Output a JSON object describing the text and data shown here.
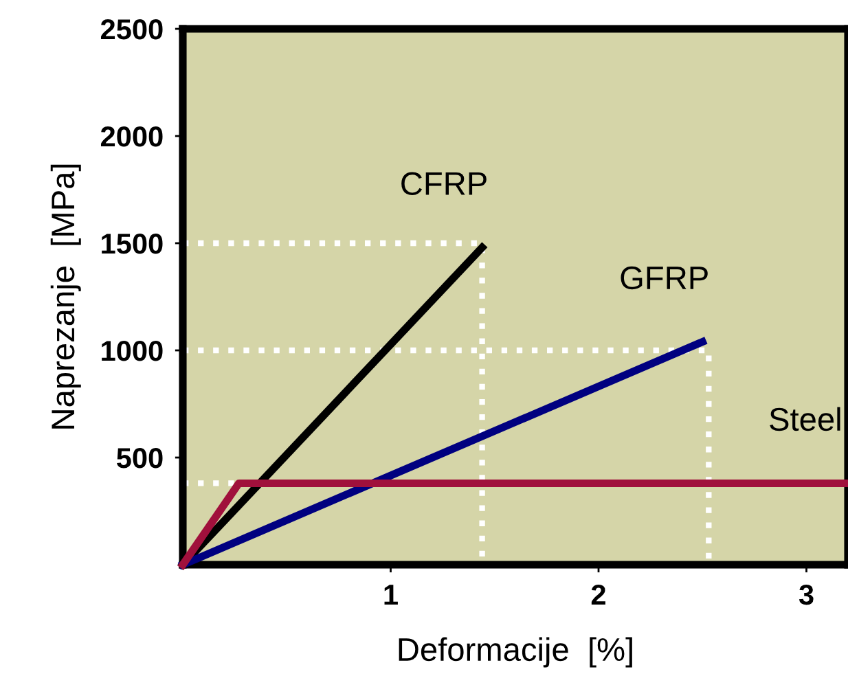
{
  "chart_data": {
    "type": "line",
    "xlabel": "Deformacije  [%]",
    "ylabel": "Naprezanje  [MPa]",
    "xlim": [
      0,
      3.2
    ],
    "ylim": [
      0,
      2500
    ],
    "xticks": [
      1,
      2,
      3
    ],
    "yticks": [
      500,
      1000,
      1500,
      2000,
      2500
    ],
    "grid": false,
    "legend": false,
    "line_style": "solid",
    "marker": "none",
    "series": [
      {
        "color": "#ffffff",
        "line_style": "dotted",
        "x": [
          0,
          1.44,
          1.44
        ],
        "values": [
          1500,
          1500,
          0
        ]
      },
      {
        "color": "#ffffff",
        "line_style": "dotted",
        "x": [
          0,
          2.53,
          2.53
        ],
        "values": [
          1000,
          1000,
          0
        ]
      },
      {
        "color": "#ffffff",
        "line_style": "dotted",
        "x": [
          0,
          0.27
        ],
        "values": [
          380,
          380
        ]
      },
      {
        "name": "CFRP",
        "color": "#000000",
        "x": [
          0,
          1.44
        ],
        "values": [
          0,
          1480
        ]
      },
      {
        "name": "GFRP",
        "color": "#000080",
        "x": [
          0,
          2.5
        ],
        "values": [
          0,
          1040
        ]
      },
      {
        "name": "Steel",
        "color": "#a0103c",
        "x": [
          0,
          0.27,
          3.2
        ],
        "values": [
          0,
          380,
          380
        ]
      }
    ]
  }
}
